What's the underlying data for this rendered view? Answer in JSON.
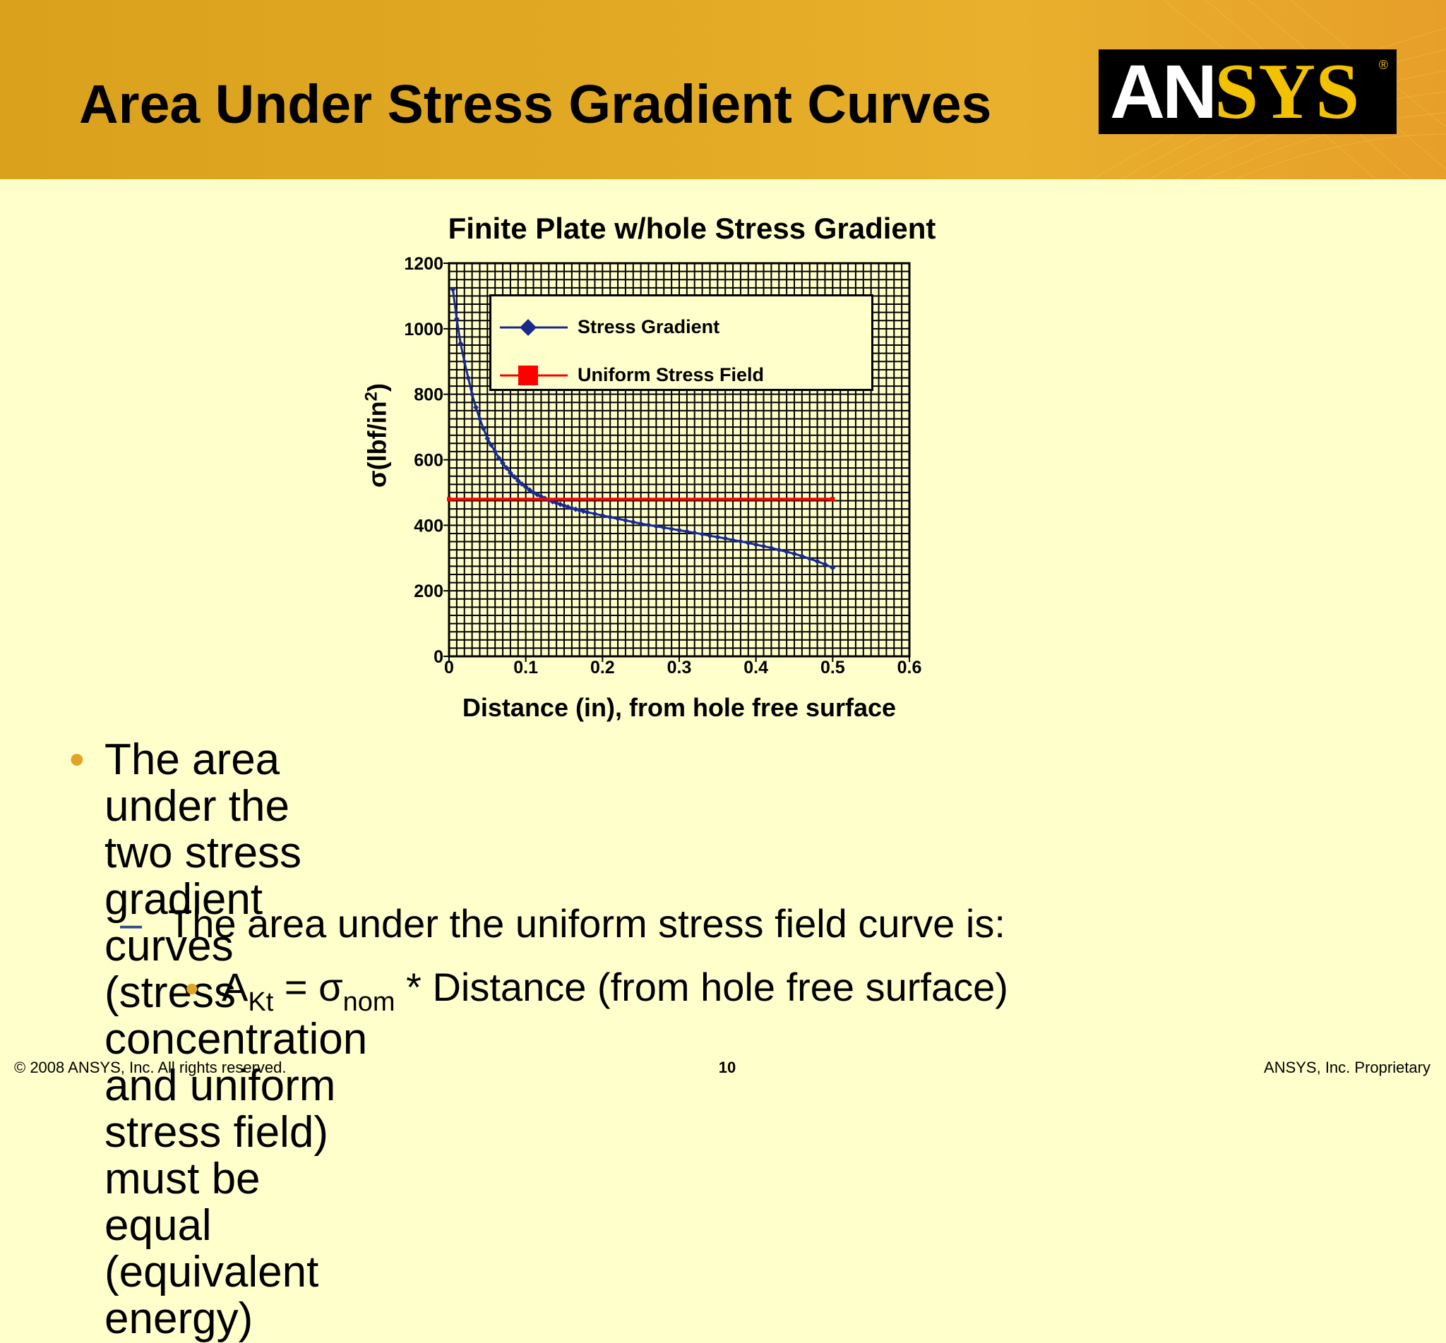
{
  "slide": {
    "title": "Area Under Stress Gradient Curves",
    "logo": {
      "text_main": "AN",
      "text_accent": "SYS",
      "registered": "®"
    }
  },
  "chart_data": {
    "type": "line",
    "title": "Finite Plate w/hole Stress Gradient",
    "xlabel": "Distance (in), from hole free surface",
    "ylabel_main": "σ(lbf/in",
    "ylabel_sup": "2",
    "ylabel_end": ")",
    "xlim": [
      0,
      0.6
    ],
    "ylim": [
      0,
      1200
    ],
    "x_ticks": [
      "0",
      "0.1",
      "0.2",
      "0.3",
      "0.4",
      "0.5",
      "0.6"
    ],
    "y_ticks": [
      "0",
      "200",
      "400",
      "600",
      "800",
      "1000",
      "1200"
    ],
    "grid": true,
    "legend_position": "top-center",
    "series": [
      {
        "name": "Stress Gradient",
        "color": "#1A2A8C",
        "marker": "diamond",
        "x": [
          0.005,
          0.01,
          0.015,
          0.02,
          0.025,
          0.03,
          0.035,
          0.04,
          0.045,
          0.05,
          0.055,
          0.06,
          0.065,
          0.07,
          0.075,
          0.08,
          0.085,
          0.09,
          0.095,
          0.1,
          0.105,
          0.11,
          0.115,
          0.12,
          0.125,
          0.13,
          0.135,
          0.14,
          0.145,
          0.15,
          0.155,
          0.16,
          0.165,
          0.17,
          0.175,
          0.18,
          0.19,
          0.2,
          0.21,
          0.22,
          0.23,
          0.24,
          0.25,
          0.26,
          0.27,
          0.28,
          0.29,
          0.3,
          0.31,
          0.32,
          0.33,
          0.34,
          0.35,
          0.36,
          0.37,
          0.38,
          0.39,
          0.4,
          0.41,
          0.42,
          0.43,
          0.44,
          0.45,
          0.46,
          0.47,
          0.48,
          0.49,
          0.5
        ],
        "y": [
          1120,
          1030,
          955,
          900,
          850,
          800,
          760,
          725,
          695,
          665,
          645,
          625,
          605,
          590,
          575,
          560,
          548,
          536,
          526,
          517,
          508,
          500,
          494,
          488,
          482,
          477,
          472,
          468,
          464,
          460,
          456,
          452,
          449,
          446,
          443,
          440,
          435,
          430,
          425,
          420,
          415,
          410,
          405,
          401,
          397,
          393,
          389,
          385,
          381,
          377,
          373,
          368,
          364,
          360,
          355,
          351,
          346,
          341,
          336,
          331,
          325,
          319,
          313,
          306,
          298,
          290,
          281,
          270
        ]
      },
      {
        "name": "Uniform Stress Field",
        "color": "#FF0000",
        "marker": "square",
        "x": [
          0,
          0.5
        ],
        "y": [
          480,
          480
        ]
      }
    ]
  },
  "bullets": {
    "b1": "The area under the two stress gradient curves (stress\nconcentration and uniform stress field) must be equal\n(equivalent energy)",
    "b2": "The area under the uniform stress field curve is:",
    "b3_a": "A",
    "b3_a_sub": "Kt",
    "b3_eq": " = σ",
    "b3_sigma_sub": "nom",
    "b3_rest": " * Distance (from hole free surface)"
  },
  "symbols": {
    "bullet": "•",
    "dash": "–"
  },
  "footer": {
    "left": "© 2008 ANSYS, Inc.  All rights reserved.",
    "page": "10",
    "right": "ANSYS, Inc. Proprietary"
  }
}
